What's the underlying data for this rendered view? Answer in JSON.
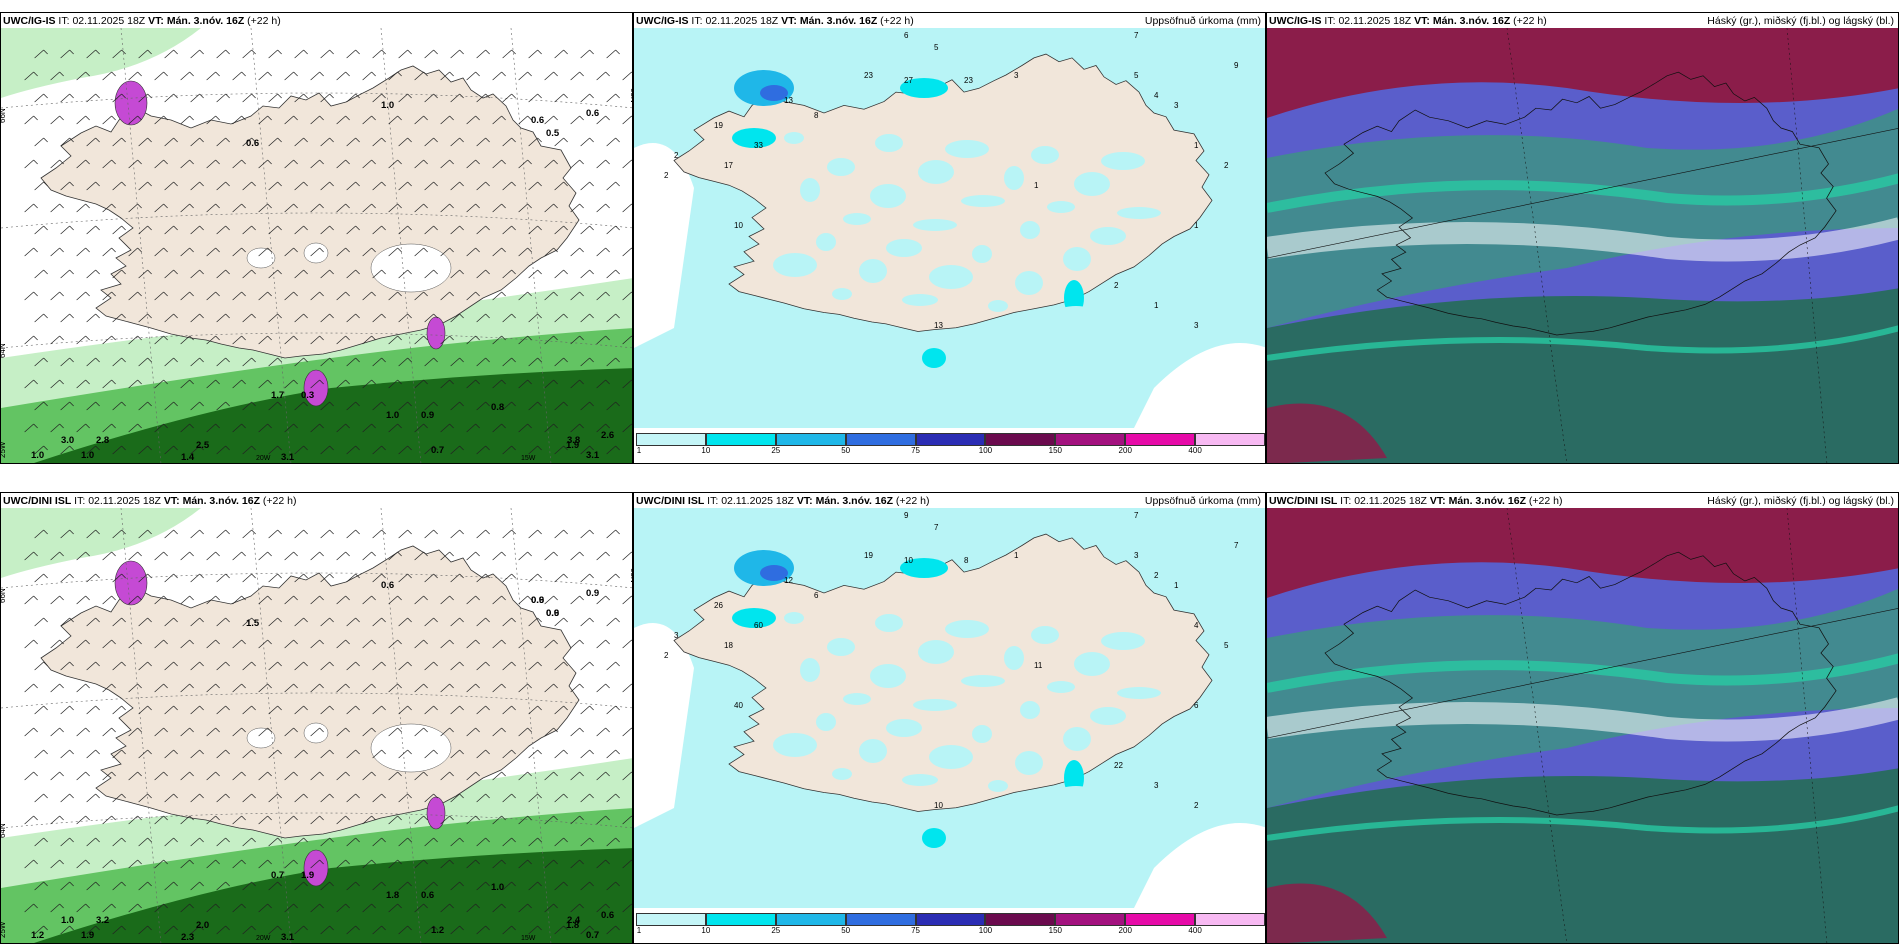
{
  "rows": [
    {
      "model": "UWC/IG-IS",
      "it_label": "IT:",
      "it_value": "02.11.2025 18Z",
      "vt_label": "VT:",
      "vt_value": "Mán. 3.nóv. 16Z",
      "lead": "(+22 h)",
      "wind_labels": [
        "0.6",
        "0.5",
        "0.6",
        "1.0",
        "0.6",
        "1.0",
        "0.9",
        "0.8",
        "0.7",
        "1.9",
        "3.1",
        "2.6",
        "3.8",
        "3.1",
        "1.4",
        "2.5",
        "2.8",
        "1.0",
        "1.7",
        "0.3",
        "3.0",
        "1.0"
      ],
      "precip_labels": [
        "6",
        "5",
        "7",
        "9",
        "3",
        "2",
        "2",
        "10",
        "19",
        "33",
        "17",
        "13",
        "8",
        "23",
        "27",
        "23",
        "5",
        "4",
        "3",
        "1",
        "2",
        "1",
        "13",
        "1",
        "2",
        "1",
        "3"
      ]
    },
    {
      "model": "UWC/DINI ISL",
      "it_label": "IT:",
      "it_value": "02.11.2025 18Z",
      "vt_label": "VT:",
      "vt_value": "Mán. 3.nóv. 16Z",
      "lead": "(+22 h)",
      "wind_labels": [
        "0.6",
        "0.6",
        "0.9",
        "0.6",
        "1.5",
        "1.8",
        "0.6",
        "1.0",
        "1.2",
        "1.8",
        "0.7",
        "0.6",
        "2.4",
        "3.1",
        "2.3",
        "2.0",
        "3.2",
        "1.9",
        "0.7",
        "1.9",
        "1.0",
        "1.2",
        "0.9",
        "0.9"
      ],
      "precip_labels": [
        "9",
        "7",
        "7",
        "7",
        "1",
        "3",
        "2",
        "40",
        "26",
        "60",
        "18",
        "12",
        "6",
        "19",
        "10",
        "8",
        "3",
        "2",
        "1",
        "4",
        "5",
        "6",
        "10",
        "11",
        "22",
        "3",
        "2"
      ]
    }
  ],
  "precip_panel_title": "Uppsöfnuð úrkoma (mm)",
  "cloud_panel_title": "Háský (gr.), miðský (fj.bl.) og lágský (bl.)",
  "axis_labels": {
    "lat_top": "66N",
    "lat_mid": "64N",
    "lon_left": "25W",
    "lon_mid": "20W",
    "lon_right": "15W",
    "lat_right": "65N"
  },
  "legend": {
    "labels": [
      "1",
      "10",
      "25",
      "50",
      "75",
      "100",
      "150",
      "200",
      "400"
    ],
    "colors": [
      "#c4f5f7",
      "#00e5ee",
      "#1fb7e8",
      "#2f6de0",
      "#2b2db4",
      "#6b0a4e",
      "#a3127f",
      "#e60aa8",
      "#f7b9f2"
    ]
  },
  "colors": {
    "land": "#f1e6da",
    "precip_light": "#b8f4f6",
    "wind_green_light": "#c6efc6",
    "wind_green_mid": "#63c463",
    "wind_green_dark": "#1a6b1a",
    "magenta": "#c54ad4",
    "cloud_high": "#8b1d4a",
    "cloud_mid": "#5a5ecb",
    "cloud_low": "#2a6b62",
    "cloud_teal": "#28c9a3"
  }
}
